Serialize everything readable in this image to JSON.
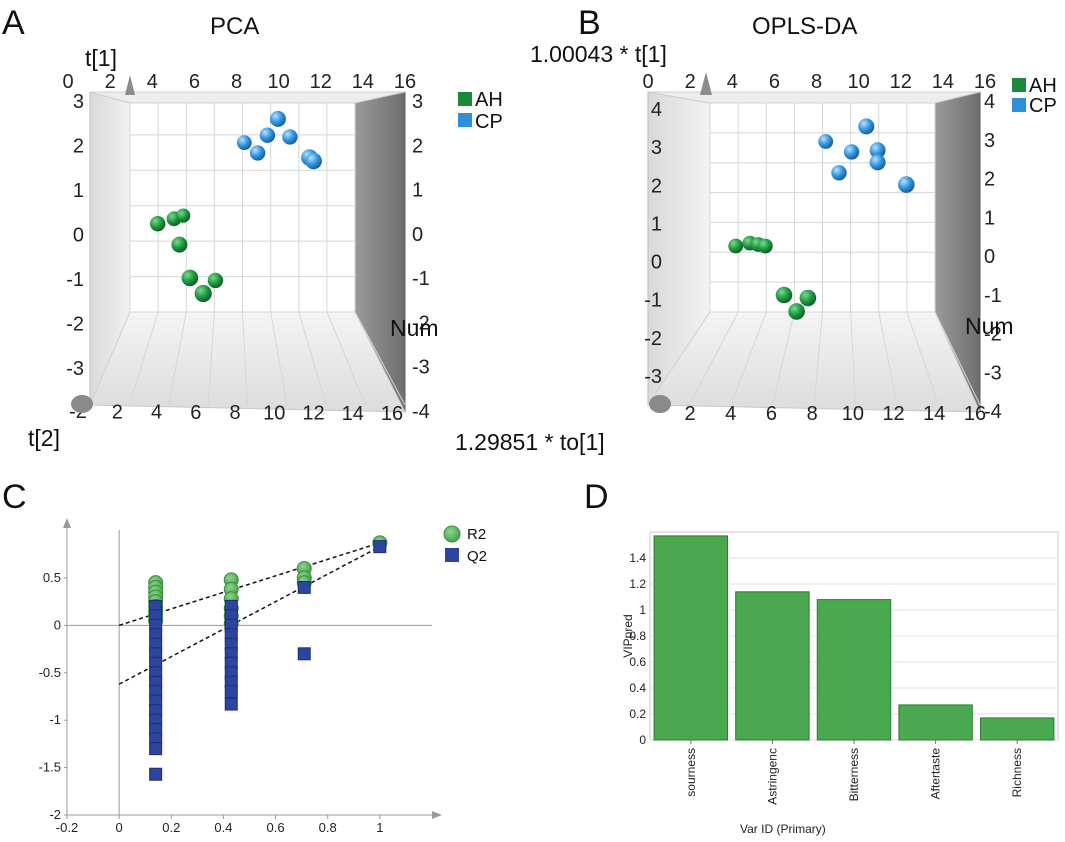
{
  "panel_labels": {
    "a": "A",
    "b": "B",
    "c": "C",
    "d": "D"
  },
  "colors": {
    "ah_green": "#1a8a3a",
    "cp_blue": "#2f8fd8",
    "r2_green": "#4caf50",
    "q2_blue": "#2b45a0",
    "bar_green": "#4aa84f"
  },
  "chart_data": [
    {
      "panel": "A",
      "type": "scatter",
      "title": "PCA",
      "axis_labels": {
        "vertical": "t[1]",
        "depth": "t[2]",
        "horizontal": "Num"
      },
      "back_x_ticks": [
        "0",
        "2",
        "4",
        "6",
        "8",
        "10",
        "12",
        "14",
        "16"
      ],
      "front_x_ticks": [
        "-2",
        "2",
        "4",
        "6",
        "8",
        "10",
        "12",
        "14",
        "16"
      ],
      "y_ticks": [
        "3",
        "2",
        "1",
        "0",
        "-1",
        "-2",
        "-3"
      ],
      "right_y_ticks": [
        "3",
        "2",
        "1",
        "0",
        "-1",
        "-2",
        "-3",
        "-4"
      ],
      "legend": [
        "AH",
        "CP"
      ],
      "series": [
        {
          "name": "AH",
          "points": [
            {
              "x": 2.2,
              "y": 0.05,
              "z": 0.4
            },
            {
              "x": 3.3,
              "y": 0.15,
              "z": 0.3
            },
            {
              "x": 3.9,
              "y": 0.2,
              "z": 0.2
            },
            {
              "x": 3.8,
              "y": -0.5,
              "z": 0.5
            },
            {
              "x": 4.6,
              "y": -1.4,
              "z": 0.6
            },
            {
              "x": 5.6,
              "y": -1.8,
              "z": 0.7
            },
            {
              "x": 6.3,
              "y": -1.55,
              "z": 0.4
            }
          ]
        },
        {
          "name": "CP",
          "points": [
            {
              "x": 8.3,
              "y": 2.3,
              "z": 0.3
            },
            {
              "x": 9.3,
              "y": 2.05,
              "z": 0.4
            },
            {
              "x": 10.0,
              "y": 2.55,
              "z": 0.4
            },
            {
              "x": 10.8,
              "y": 3.05,
              "z": 0.5
            },
            {
              "x": 11.6,
              "y": 2.5,
              "z": 0.4
            },
            {
              "x": 13.1,
              "y": 2.0,
              "z": 0.6
            },
            {
              "x": 13.4,
              "y": 1.9,
              "z": 0.6
            }
          ]
        }
      ]
    },
    {
      "panel": "B",
      "type": "scatter",
      "title": "OPLS-DA",
      "axis_labels": {
        "vertical": "1.00043 * t[1]",
        "depth": "1.29851 * to[1]",
        "horizontal": "Num"
      },
      "back_x_ticks": [
        "0",
        "2",
        "4",
        "6",
        "8",
        "10",
        "12",
        "14",
        "16"
      ],
      "front_x_ticks": [
        "2",
        "4",
        "6",
        "8",
        "10",
        "12",
        "14",
        "16"
      ],
      "y_ticks": [
        "4",
        "3",
        "2",
        "1",
        "0",
        "-1",
        "-2",
        "-3"
      ],
      "right_y_ticks": [
        "4",
        "3",
        "2",
        "1",
        "0",
        "-1",
        "-2",
        "-3",
        "-4"
      ],
      "legend": [
        "AH",
        "CP"
      ],
      "series": [
        {
          "name": "AH",
          "points": [
            {
              "x": 2.0,
              "y": -0.45,
              "z": 0.3
            },
            {
              "x": 3.0,
              "y": -0.35,
              "z": 0.3
            },
            {
              "x": 3.6,
              "y": -0.4,
              "z": 0.3
            },
            {
              "x": 4.1,
              "y": -0.45,
              "z": 0.3
            },
            {
              "x": 5.6,
              "y": -1.95,
              "z": 0.6
            },
            {
              "x": 6.5,
              "y": -2.5,
              "z": 0.6
            },
            {
              "x": 7.3,
              "y": -2.05,
              "z": 0.6
            }
          ]
        },
        {
          "name": "CP",
          "points": [
            {
              "x": 8.4,
              "y": 3.05,
              "z": 0.3
            },
            {
              "x": 9.4,
              "y": 2.05,
              "z": 0.4
            },
            {
              "x": 10.3,
              "y": 2.75,
              "z": 0.4
            },
            {
              "x": 11.4,
              "y": 3.65,
              "z": 0.5
            },
            {
              "x": 12.2,
              "y": 2.85,
              "z": 0.5
            },
            {
              "x": 12.2,
              "y": 2.45,
              "z": 0.5
            },
            {
              "x": 14.3,
              "y": 1.75,
              "z": 0.6
            }
          ]
        }
      ]
    },
    {
      "panel": "C",
      "type": "scatter",
      "title": "",
      "xlabel": "",
      "ylabel": "",
      "xlim": [
        -0.2,
        1.2
      ],
      "ylim": [
        -2,
        0.9
      ],
      "x_ticks": [
        "-0.2",
        "0",
        "0.2",
        "0.4",
        "0.6",
        "0.8",
        "1"
      ],
      "y_ticks": [
        "0.5",
        "0",
        "-0.5",
        "-1",
        "-1.5",
        "-2"
      ],
      "legend": [
        "R2",
        "Q2"
      ],
      "series": [
        {
          "name": "R2",
          "marker": "circle",
          "points": [
            [
              0.14,
              0.45
            ],
            [
              0.14,
              0.4
            ],
            [
              0.14,
              0.35
            ],
            [
              0.14,
              0.3
            ],
            [
              0.14,
              0.25
            ],
            [
              0.14,
              0.2
            ],
            [
              0.14,
              0.15
            ],
            [
              0.14,
              0.1
            ],
            [
              0.14,
              0.05
            ],
            [
              0.43,
              0.48
            ],
            [
              0.43,
              0.38
            ],
            [
              0.43,
              0.28
            ],
            [
              0.43,
              0.18
            ],
            [
              0.43,
              0.1
            ],
            [
              0.43,
              0.02
            ],
            [
              0.71,
              0.6
            ],
            [
              0.71,
              0.5
            ],
            [
              0.71,
              0.45
            ],
            [
              1.0,
              0.87
            ]
          ]
        },
        {
          "name": "Q2",
          "marker": "square",
          "points": [
            [
              0.14,
              0.2
            ],
            [
              0.14,
              0.1
            ],
            [
              0.14,
              0.0
            ],
            [
              0.14,
              -0.1
            ],
            [
              0.14,
              -0.2
            ],
            [
              0.14,
              -0.3
            ],
            [
              0.14,
              -0.4
            ],
            [
              0.14,
              -0.5
            ],
            [
              0.14,
              -0.6
            ],
            [
              0.14,
              -0.7
            ],
            [
              0.14,
              -0.8
            ],
            [
              0.14,
              -0.9
            ],
            [
              0.14,
              -1.0
            ],
            [
              0.14,
              -1.1
            ],
            [
              0.14,
              -1.2
            ],
            [
              0.14,
              -1.3
            ],
            [
              0.14,
              -1.57
            ],
            [
              0.43,
              0.2
            ],
            [
              0.43,
              0.1
            ],
            [
              0.43,
              0.0
            ],
            [
              0.43,
              -0.1
            ],
            [
              0.43,
              -0.2
            ],
            [
              0.43,
              -0.3
            ],
            [
              0.43,
              -0.4
            ],
            [
              0.43,
              -0.5
            ],
            [
              0.43,
              -0.6
            ],
            [
              0.43,
              -0.7
            ],
            [
              0.43,
              -0.83
            ],
            [
              0.71,
              0.4
            ],
            [
              0.71,
              -0.3
            ],
            [
              1.0,
              0.83
            ]
          ]
        }
      ],
      "regression_lines": [
        {
          "name": "R2",
          "x": [
            0,
            1.0
          ],
          "y": [
            0.0,
            0.87
          ]
        },
        {
          "name": "Q2",
          "x": [
            0,
            1.0
          ],
          "y": [
            -0.62,
            0.83
          ]
        }
      ]
    },
    {
      "panel": "D",
      "type": "bar",
      "categories": [
        "sourness",
        "Astringenc",
        "Bitterness",
        "Aftertaste",
        "Richness"
      ],
      "values": [
        1.57,
        1.14,
        1.08,
        0.27,
        0.17
      ],
      "title": "",
      "xlabel": "Var ID (Primary)",
      "ylabel": "VIPpred",
      "ylim": [
        0,
        1.6
      ],
      "y_ticks": [
        "1.4",
        "1.2",
        "1",
        "0.8",
        "0.6",
        "0.4",
        "0.2",
        "0"
      ]
    }
  ]
}
